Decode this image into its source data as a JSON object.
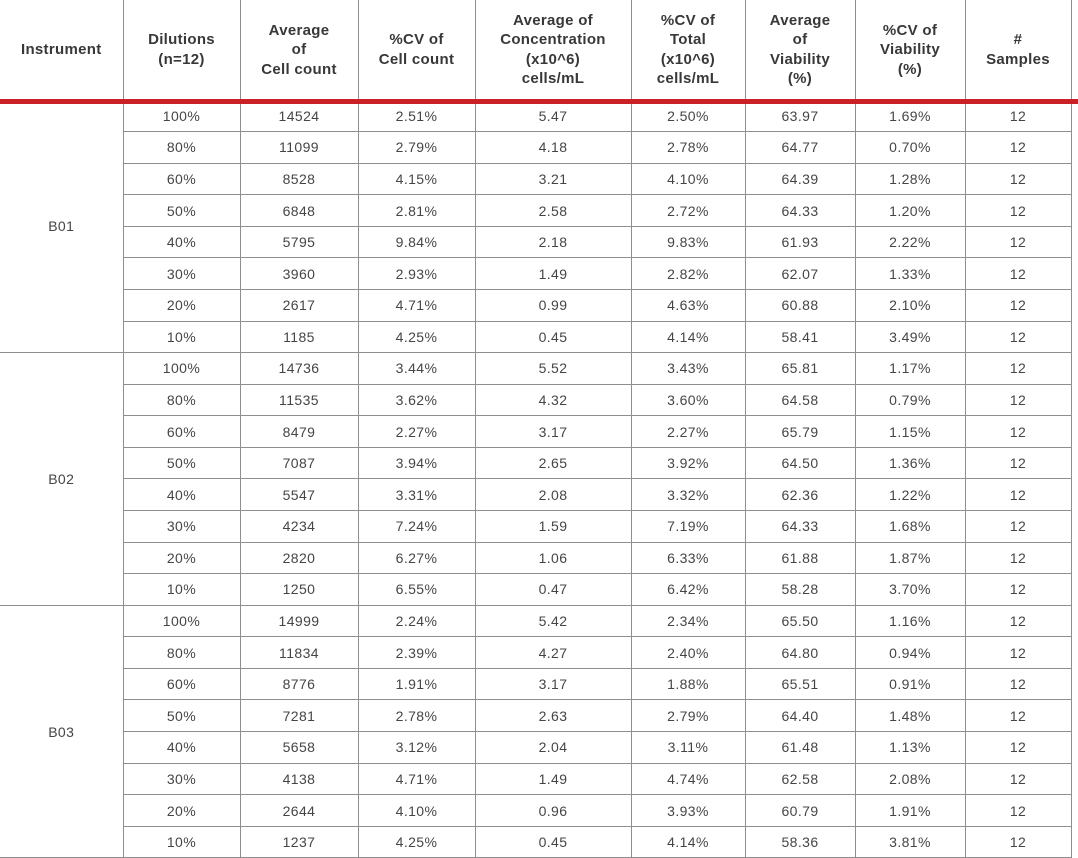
{
  "colors": {
    "accent_rule": "#ca2127",
    "grid_line": "#8e8e8e",
    "header_text": "#383838",
    "body_text": "#454545",
    "background": "#ffffff"
  },
  "chart_data": {
    "type": "table",
    "layout": {
      "header_separator": "thick-red-rule",
      "instrument_column_merged": true,
      "rows_per_instrument": 8
    },
    "columns": [
      {
        "id": "instrument",
        "label": "Instrument"
      },
      {
        "id": "dilutions",
        "label": "Dilutions\n(n=12)"
      },
      {
        "id": "avg-cell-count",
        "label": "Average\nof\nCell count"
      },
      {
        "id": "cv-cell-count",
        "label": "%CV of\nCell count"
      },
      {
        "id": "avg-concentration",
        "label": "Average of\nConcentration\n(x10^6)\ncells/mL"
      },
      {
        "id": "cv-total",
        "label": "%CV of\nTotal\n(x10^6)\ncells/mL"
      },
      {
        "id": "avg-viability",
        "label": "Average\nof\nViability\n(%)"
      },
      {
        "id": "cv-viability",
        "label": "%CV of\nViability\n(%)"
      },
      {
        "id": "num-samples",
        "label": "#\nSamples"
      }
    ],
    "groups": [
      {
        "instrument": "B01",
        "rows": [
          [
            "100%",
            "14524",
            "2.51%",
            "5.47",
            "2.50%",
            "63.97",
            "1.69%",
            "12"
          ],
          [
            "80%",
            "11099",
            "2.79%",
            "4.18",
            "2.78%",
            "64.77",
            "0.70%",
            "12"
          ],
          [
            "60%",
            "8528",
            "4.15%",
            "3.21",
            "4.10%",
            "64.39",
            "1.28%",
            "12"
          ],
          [
            "50%",
            "6848",
            "2.81%",
            "2.58",
            "2.72%",
            "64.33",
            "1.20%",
            "12"
          ],
          [
            "40%",
            "5795",
            "9.84%",
            "2.18",
            "9.83%",
            "61.93",
            "2.22%",
            "12"
          ],
          [
            "30%",
            "3960",
            "2.93%",
            "1.49",
            "2.82%",
            "62.07",
            "1.33%",
            "12"
          ],
          [
            "20%",
            "2617",
            "4.71%",
            "0.99",
            "4.63%",
            "60.88",
            "2.10%",
            "12"
          ],
          [
            "10%",
            "1185",
            "4.25%",
            "0.45",
            "4.14%",
            "58.41",
            "3.49%",
            "12"
          ]
        ]
      },
      {
        "instrument": "B02",
        "rows": [
          [
            "100%",
            "14736",
            "3.44%",
            "5.52",
            "3.43%",
            "65.81",
            "1.17%",
            "12"
          ],
          [
            "80%",
            "11535",
            "3.62%",
            "4.32",
            "3.60%",
            "64.58",
            "0.79%",
            "12"
          ],
          [
            "60%",
            "8479",
            "2.27%",
            "3.17",
            "2.27%",
            "65.79",
            "1.15%",
            "12"
          ],
          [
            "50%",
            "7087",
            "3.94%",
            "2.65",
            "3.92%",
            "64.50",
            "1.36%",
            "12"
          ],
          [
            "40%",
            "5547",
            "3.31%",
            "2.08",
            "3.32%",
            "62.36",
            "1.22%",
            "12"
          ],
          [
            "30%",
            "4234",
            "7.24%",
            "1.59",
            "7.19%",
            "64.33",
            "1.68%",
            "12"
          ],
          [
            "20%",
            "2820",
            "6.27%",
            "1.06",
            "6.33%",
            "61.88",
            "1.87%",
            "12"
          ],
          [
            "10%",
            "1250",
            "6.55%",
            "0.47",
            "6.42%",
            "58.28",
            "3.70%",
            "12"
          ]
        ]
      },
      {
        "instrument": "B03",
        "rows": [
          [
            "100%",
            "14999",
            "2.24%",
            "5.42",
            "2.34%",
            "65.50",
            "1.16%",
            "12"
          ],
          [
            "80%",
            "11834",
            "2.39%",
            "4.27",
            "2.40%",
            "64.80",
            "0.94%",
            "12"
          ],
          [
            "60%",
            "8776",
            "1.91%",
            "3.17",
            "1.88%",
            "65.51",
            "0.91%",
            "12"
          ],
          [
            "50%",
            "7281",
            "2.78%",
            "2.63",
            "2.79%",
            "64.40",
            "1.48%",
            "12"
          ],
          [
            "40%",
            "5658",
            "3.12%",
            "2.04",
            "3.11%",
            "61.48",
            "1.13%",
            "12"
          ],
          [
            "30%",
            "4138",
            "4.71%",
            "1.49",
            "4.74%",
            "62.58",
            "2.08%",
            "12"
          ],
          [
            "20%",
            "2644",
            "4.10%",
            "0.96",
            "3.93%",
            "60.79",
            "1.91%",
            "12"
          ],
          [
            "10%",
            "1237",
            "4.25%",
            "0.45",
            "4.14%",
            "58.36",
            "3.81%",
            "12"
          ]
        ]
      }
    ]
  }
}
